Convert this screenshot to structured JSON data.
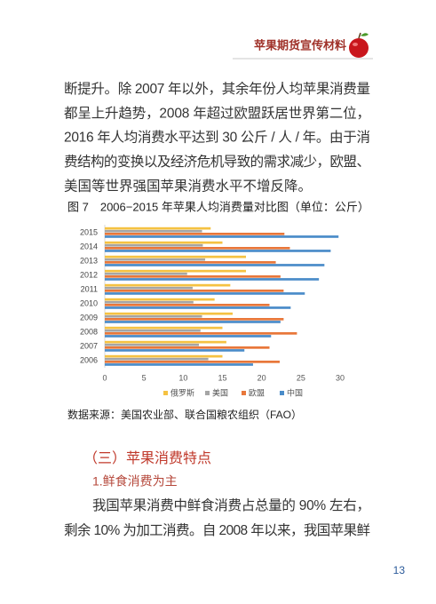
{
  "header": {
    "title": "苹果期货宣传材料"
  },
  "paragraph1": {
    "lines": [
      "断提升。除 2007 年以外，其余年份人均苹果消费量",
      "都呈上升趋势，2008 年超过欧盟跃居世界第二位，",
      "2016 年人均消费水平达到 30 公斤 / 人 / 年。由于消",
      "费结构的变换以及经济危机导致的需求减少，欧盟、",
      "美国等世界强国苹果消费水平不增反降。"
    ]
  },
  "figure": {
    "caption": "图 7　2006−2015 年苹果人均消费量对比图（单位：公斤）",
    "source": "数据来源：美国农业部、联合国粮农组织（FAO）"
  },
  "chart_data": {
    "type": "bar",
    "orientation": "horizontal",
    "categories": [
      "2006",
      "2007",
      "2008",
      "2009",
      "2010",
      "2011",
      "2012",
      "2013",
      "2014",
      "2015"
    ],
    "series": [
      {
        "name": "俄罗斯",
        "color": "#f5c242",
        "values": [
          15,
          15.5,
          15,
          16.3,
          14,
          16,
          18,
          18,
          15,
          13.5
        ]
      },
      {
        "name": "美国",
        "color": "#a5a5a5",
        "values": [
          13.2,
          12,
          12.2,
          12.4,
          11.3,
          11.2,
          10.5,
          12.8,
          12.5,
          12.4
        ]
      },
      {
        "name": "欧盟",
        "color": "#e8773a",
        "values": [
          22.3,
          21,
          24.5,
          22.8,
          21,
          22.8,
          22.4,
          21.8,
          23.6,
          22.9
        ]
      },
      {
        "name": "中国",
        "color": "#4a8cc9",
        "values": [
          18.9,
          17.8,
          21.2,
          22.4,
          23.7,
          25.5,
          27.3,
          28,
          28.8,
          29.8
        ]
      }
    ],
    "xlim": [
      0,
      30
    ],
    "xticks": [
      0,
      5,
      10,
      15,
      20,
      25,
      30
    ],
    "grid": false,
    "legend": "bottom"
  },
  "section": {
    "heading": "（三）苹果消费特点"
  },
  "subsection": {
    "heading": "1.鲜食消费为主"
  },
  "paragraph2": {
    "lines": [
      "我国苹果消费中鲜食消费占总量的 90% 左右，",
      "剩余 10% 为加工消费。自 2008 年以来，我国苹果鲜"
    ]
  },
  "page_number": "13"
}
